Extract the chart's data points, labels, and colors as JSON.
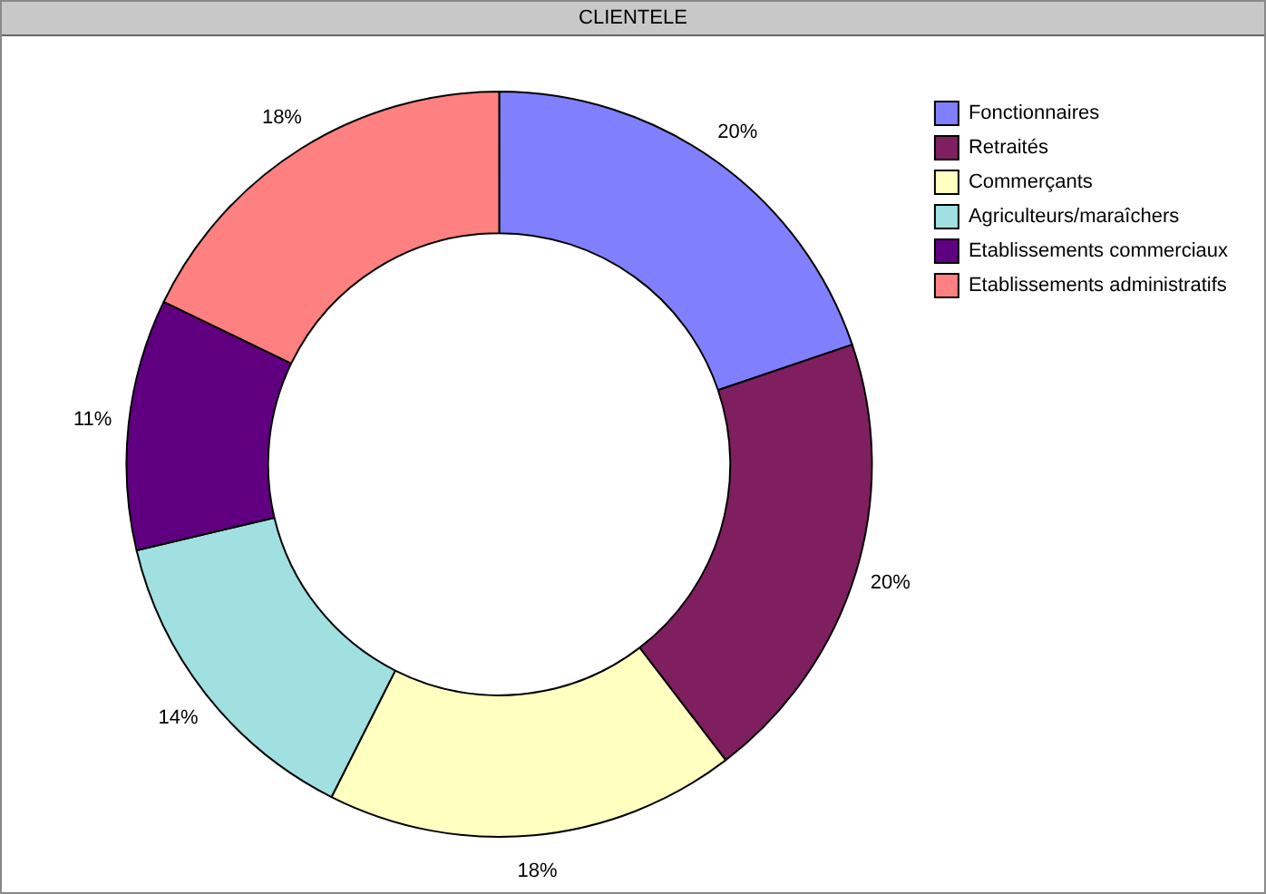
{
  "chart_data": {
    "type": "donut",
    "title": "CLIENTELE",
    "categories": [
      "Fonctionnaires",
      "Retraités",
      "Commerçants",
      "Agriculteurs/maraîchers",
      "Etablissements commerciaux",
      "Etablissements administratifs"
    ],
    "values": [
      20,
      20,
      18,
      14,
      11,
      18
    ],
    "value_labels": [
      "20%",
      "20%",
      "18%",
      "14%",
      "11%",
      "18%"
    ],
    "colors": [
      "#8080ff",
      "#7f1f5f",
      "#ffffc0",
      "#a0e0e0",
      "#600080",
      "#ff8080"
    ],
    "legend": "top right"
  }
}
